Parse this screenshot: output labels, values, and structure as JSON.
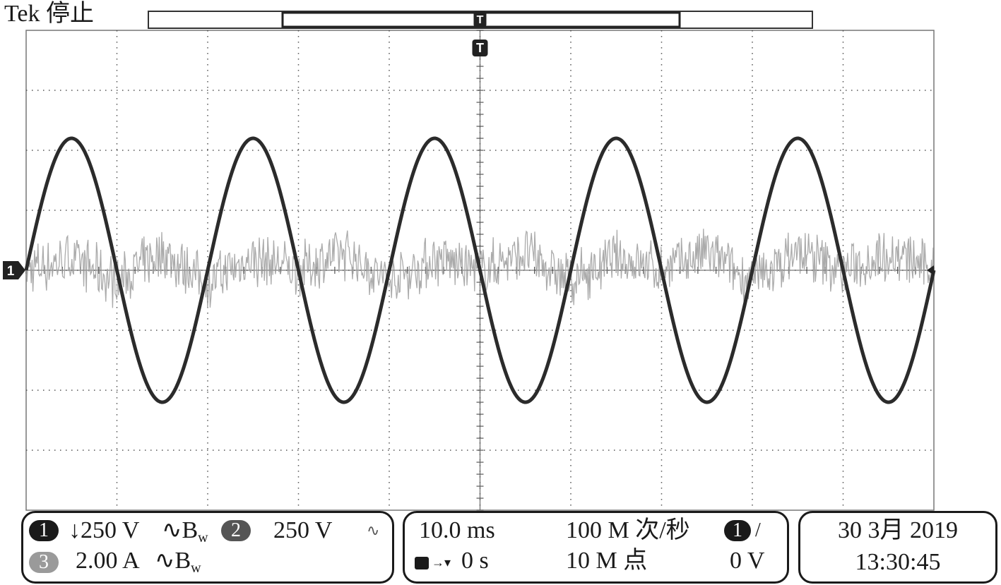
{
  "status": {
    "brand": "Tek",
    "state": "停止"
  },
  "colors": {
    "ch1": "#2b2b2b",
    "ch3": "#9c9c9c",
    "grid": "#555555",
    "background": "#ffffff"
  },
  "markers": {
    "trigger": "T",
    "ch1_ground": "1"
  },
  "channels": [
    {
      "badge": "1",
      "scale": "↓250 V",
      "bw_prefix": "∿B",
      "bw_sub": "w"
    },
    {
      "badge": "2",
      "scale": "250 V",
      "icon": "∿"
    },
    {
      "badge": "3",
      "scale": "2.00 A",
      "bw_prefix": "∿B",
      "bw_sub": "w"
    }
  ],
  "timebase": {
    "scale": "10.0 ms",
    "sample_rate": "100 M 次/秒",
    "trigger_source": "1",
    "trigger_slope": "/",
    "position": "0 s",
    "record_length": "10 M 点",
    "trigger_level": "0 V"
  },
  "datetime": {
    "date": "30 3月 2019",
    "time": "13:30:45"
  },
  "chart_data": {
    "type": "line",
    "x_unit": "div",
    "y_unit": "div",
    "xlim": [
      0,
      10
    ],
    "ylim": [
      -4,
      4
    ],
    "grid": true,
    "series": [
      {
        "name": "1",
        "x": [
          0,
          0.5,
          1,
          1.5,
          2,
          2.5,
          3,
          3.5,
          4,
          4.5,
          5,
          5.5,
          6,
          6.5,
          7,
          7.5,
          8,
          8.5,
          9,
          9.5,
          10
        ],
        "y": [
          0,
          2.2,
          0,
          -2.2,
          0,
          2.2,
          0,
          -2.2,
          0,
          2.2,
          0,
          -2.2,
          0,
          2.2,
          0,
          -2.2,
          0,
          2.2,
          0,
          -2.2,
          0
        ],
        "shape": "sine",
        "period_div": 2.0,
        "amplitude_div": 2.2
      },
      {
        "name": "3",
        "shape": "noise",
        "peak_div": 0.5,
        "x": [
          0,
          0.5,
          1,
          1.5,
          2,
          2.5,
          3,
          3.5,
          4,
          4.5,
          5,
          5.5,
          6,
          6.5,
          7,
          7.5,
          8,
          8.5,
          9,
          9.5,
          10
        ],
        "y": [
          0,
          0.2,
          -0.2,
          0.3,
          -0.2,
          0.2,
          0,
          0.3,
          -0.2,
          0.2,
          0,
          0.3,
          -0.2,
          0.2,
          0,
          0.3,
          -0.2,
          0.3,
          0,
          0.3,
          0
        ]
      }
    ]
  }
}
